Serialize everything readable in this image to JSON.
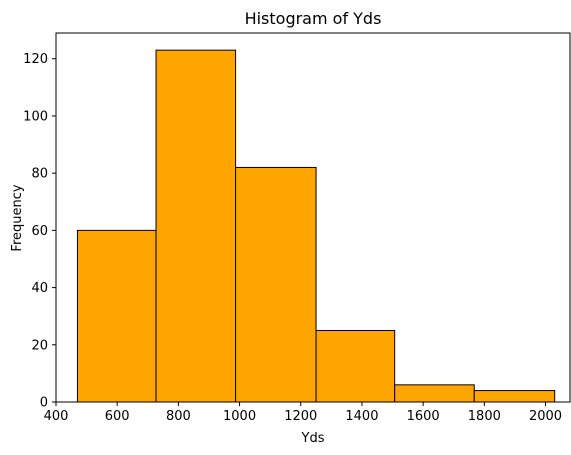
{
  "chart_data": {
    "type": "bar",
    "histogram": true,
    "title": "Histogram of Yds",
    "xlabel": "Yds",
    "ylabel": "Frequency",
    "bins": [
      {
        "start": 470,
        "end": 727,
        "count": 60
      },
      {
        "start": 727,
        "end": 987,
        "count": 123
      },
      {
        "start": 987,
        "end": 1250,
        "count": 82
      },
      {
        "start": 1250,
        "end": 1507,
        "count": 25
      },
      {
        "start": 1507,
        "end": 1767,
        "count": 6
      },
      {
        "start": 1767,
        "end": 2030,
        "count": 4
      }
    ],
    "xlim": [
      400,
      2080
    ],
    "ylim": [
      0,
      129
    ],
    "xticks": [
      "400",
      "600",
      "800",
      "1000",
      "1200",
      "1400",
      "1600",
      "1800",
      "2000"
    ],
    "yticks": [
      "0",
      "20",
      "40",
      "60",
      "80",
      "100",
      "120"
    ],
    "bar_color": "#FFA500",
    "edge_color": "#000000",
    "grid": false,
    "legend": false
  }
}
